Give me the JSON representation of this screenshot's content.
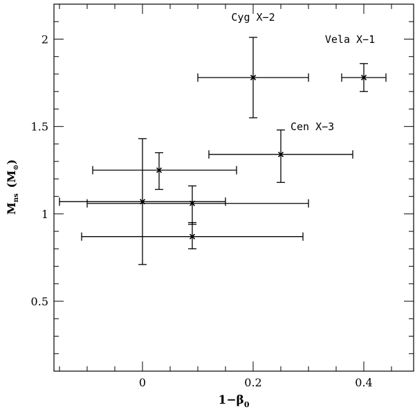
{
  "chart_data": {
    "type": "scatter",
    "title": "",
    "xlabel": "1−β",
    "xlabel_sub": "0",
    "ylabel": "M",
    "ylabel_sub": "ns",
    "ylabel_unit": "(M",
    "ylabel_unit_sub": "⊙",
    "ylabel_unit_close": ")",
    "xlim": [
      -0.16,
      0.49
    ],
    "ylim": [
      0.1,
      2.2
    ],
    "x_ticks": [
      0,
      0.2,
      0.4
    ],
    "x_tick_labels": [
      "0",
      "0.2",
      "0.4"
    ],
    "y_ticks": [
      0.5,
      1,
      1.5,
      2
    ],
    "y_tick_labels": [
      "0.5",
      "1",
      "1.5",
      "2"
    ],
    "grid": false,
    "points": [
      {
        "x": 0.2,
        "y": 1.78,
        "xerr": [
          0.1,
          0.1
        ],
        "yerr": [
          0.23,
          0.23
        ],
        "label": "Cyg X−2"
      },
      {
        "x": 0.4,
        "y": 1.78,
        "xerr": [
          0.04,
          0.04
        ],
        "yerr": [
          0.08,
          0.08
        ],
        "label": "Vela X−1"
      },
      {
        "x": 0.25,
        "y": 1.34,
        "xerr": [
          0.13,
          0.13
        ],
        "yerr": [
          0.16,
          0.14
        ],
        "label": "Cen X−3"
      },
      {
        "x": 0.03,
        "y": 1.25,
        "xerr": [
          0.12,
          0.14
        ],
        "yerr": [
          0.11,
          0.1
        ]
      },
      {
        "x": 0.0,
        "y": 1.07,
        "xerr": [
          0.15,
          0.15
        ],
        "yerr": [
          0.36,
          0.36
        ]
      },
      {
        "x": 0.09,
        "y": 1.06,
        "xerr": [
          0.19,
          0.21
        ],
        "yerr": [
          0.12,
          0.1
        ]
      },
      {
        "x": 0.09,
        "y": 0.87,
        "xerr": [
          0.2,
          0.2
        ],
        "yerr": [
          0.07,
          0.08
        ]
      }
    ]
  }
}
